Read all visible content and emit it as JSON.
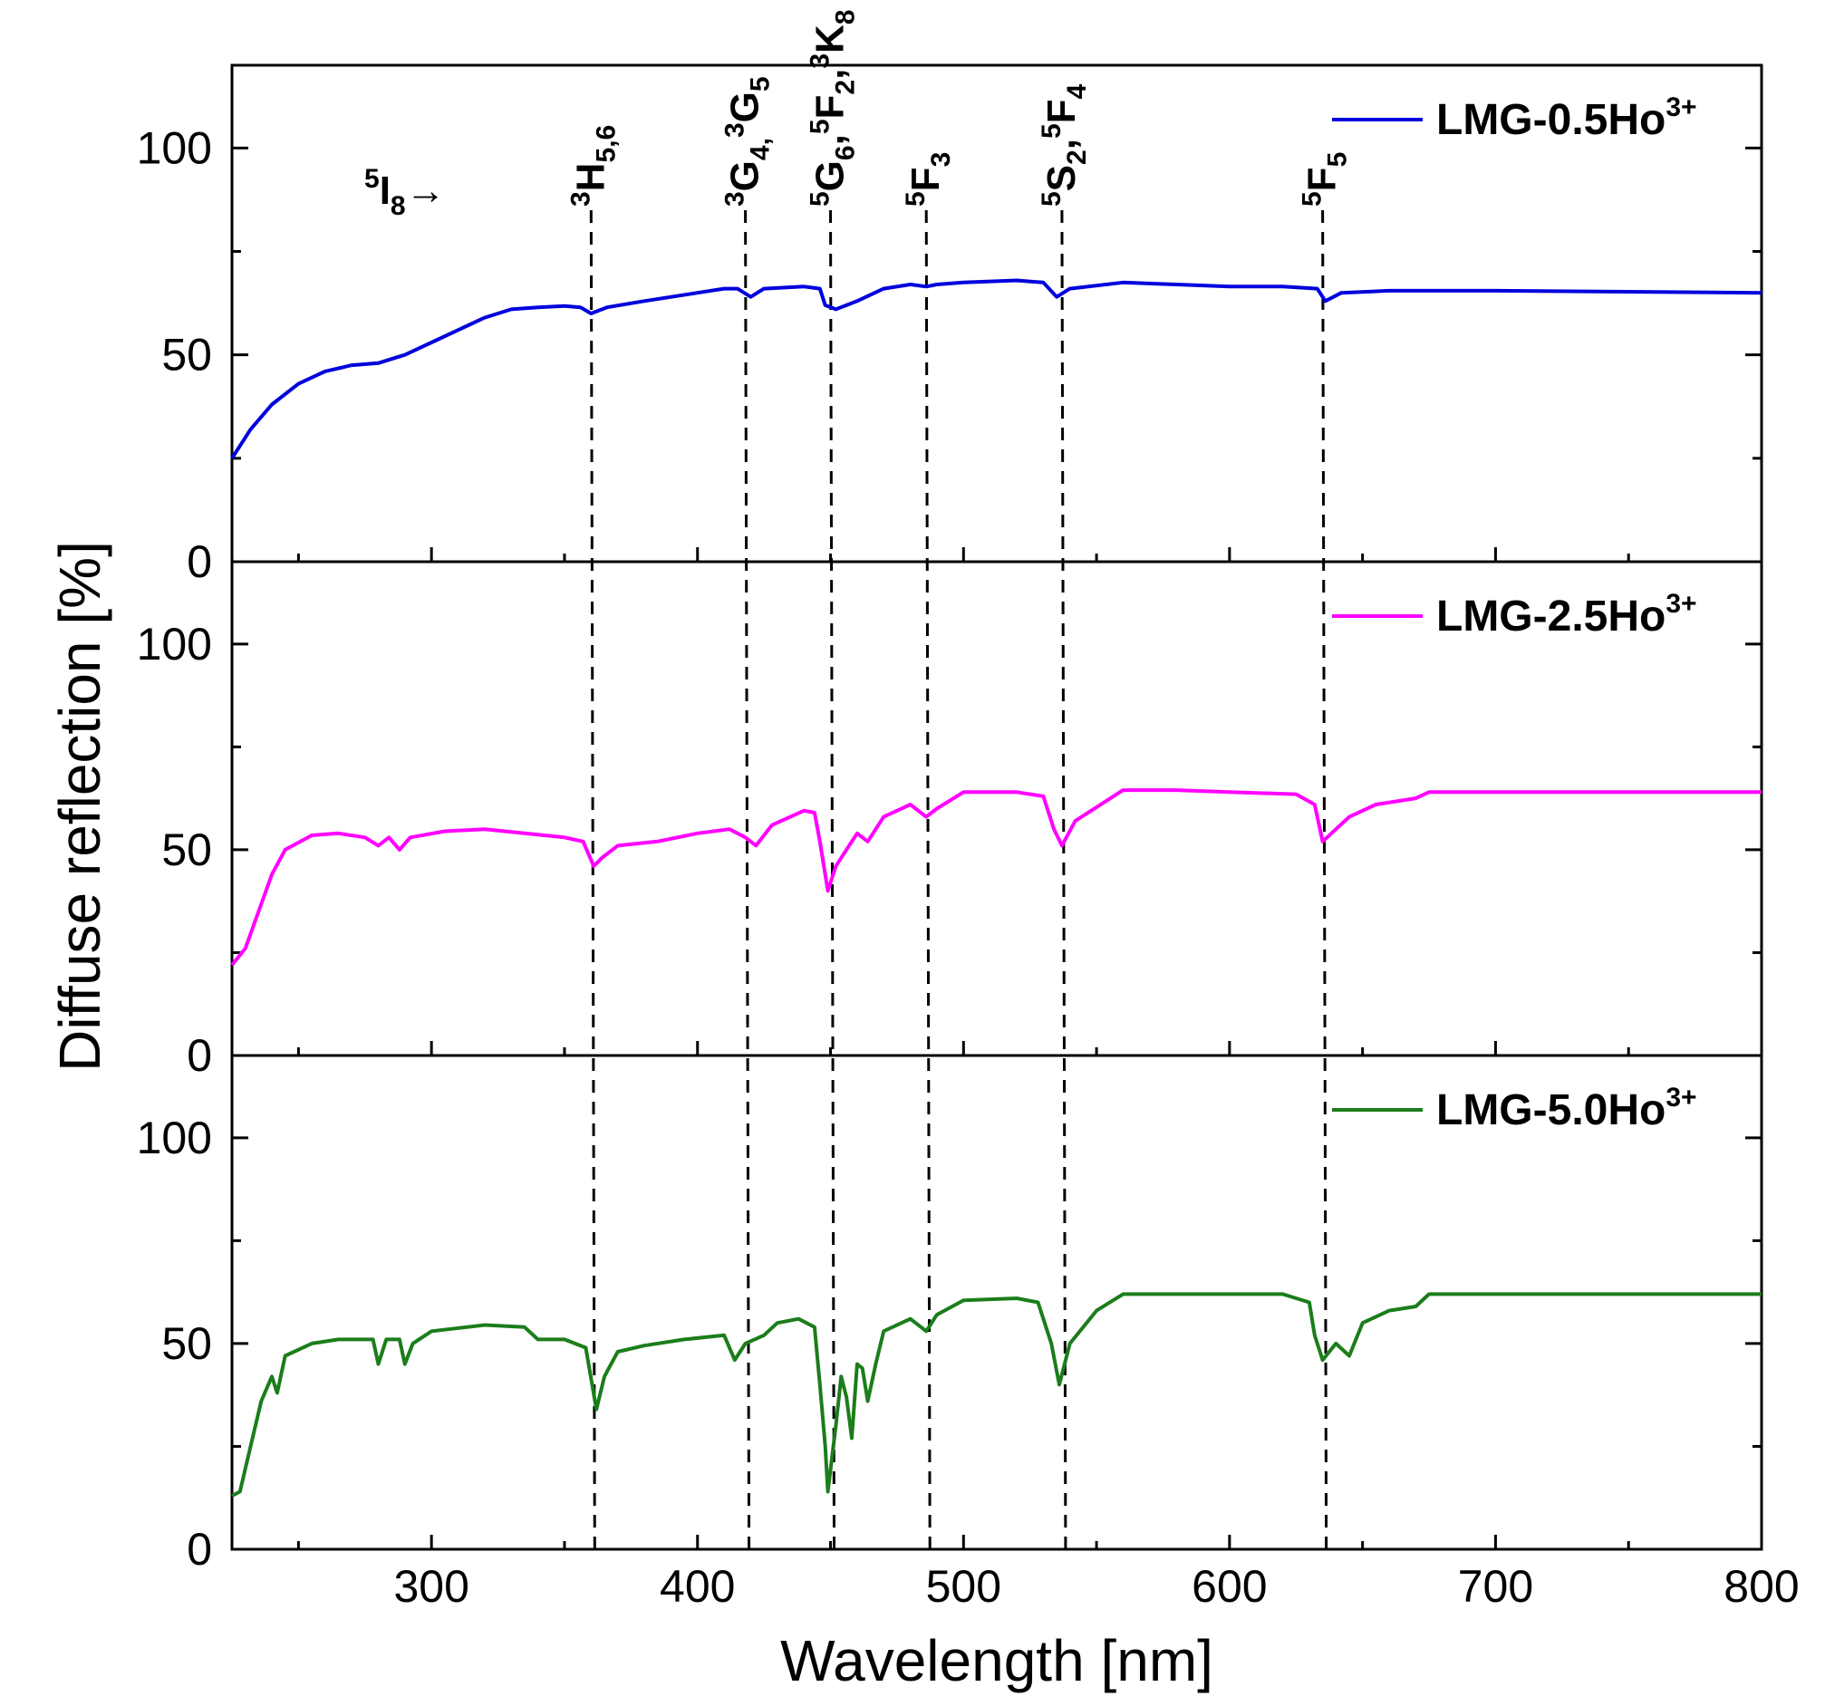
{
  "chart_data": {
    "type": "line",
    "title": "",
    "xlabel": "Wavelength [nm]",
    "ylabel": "Diffuse reflection [%]",
    "xlim": [
      225,
      800
    ],
    "ylim": [
      0,
      120
    ],
    "x_ticks": [
      300,
      400,
      500,
      600,
      700,
      800
    ],
    "x_tick_labels": [
      "300",
      "400",
      "500",
      "600",
      "700",
      "800"
    ],
    "y_ticks": [
      0,
      50,
      100
    ],
    "y_tick_labels": [
      "0",
      "50",
      "100"
    ],
    "panels": [
      {
        "legend": {
          "text": "LMG-0.5Ho",
          "superscript": "3+"
        },
        "color": "#0000dd",
        "series": {
          "name": "LMG-0.5Ho3+",
          "points": [
            [
              225,
              25
            ],
            [
              232,
              32
            ],
            [
              240,
              38
            ],
            [
              250,
              43
            ],
            [
              260,
              46
            ],
            [
              270,
              47.5
            ],
            [
              280,
              48
            ],
            [
              285,
              49
            ],
            [
              290,
              50
            ],
            [
              300,
              53
            ],
            [
              310,
              56
            ],
            [
              320,
              59
            ],
            [
              330,
              61
            ],
            [
              340,
              61.5
            ],
            [
              350,
              61.8
            ],
            [
              356,
              61.5
            ],
            [
              360,
              60
            ],
            [
              366,
              61.5
            ],
            [
              380,
              63
            ],
            [
              400,
              65
            ],
            [
              410,
              66
            ],
            [
              415,
              66
            ],
            [
              420,
              64
            ],
            [
              425,
              66
            ],
            [
              440,
              66.5
            ],
            [
              446,
              66
            ],
            [
              448,
              62
            ],
            [
              452,
              61
            ],
            [
              456,
              62
            ],
            [
              460,
              63
            ],
            [
              470,
              66
            ],
            [
              480,
              67
            ],
            [
              486,
              66.5
            ],
            [
              490,
              67
            ],
            [
              500,
              67.5
            ],
            [
              520,
              68
            ],
            [
              530,
              67.5
            ],
            [
              535,
              64
            ],
            [
              540,
              66
            ],
            [
              560,
              67.5
            ],
            [
              580,
              67
            ],
            [
              600,
              66.5
            ],
            [
              620,
              66.5
            ],
            [
              633,
              66
            ],
            [
              636,
              63
            ],
            [
              642,
              65
            ],
            [
              660,
              65.5
            ],
            [
              700,
              65.5
            ],
            [
              800,
              65
            ]
          ]
        }
      },
      {
        "legend": {
          "text": "LMG-2.5Ho",
          "superscript": "3+"
        },
        "color": "#ff00ff",
        "series": {
          "name": "LMG-2.5Ho3+",
          "points": [
            [
              225,
              22
            ],
            [
              230,
              26
            ],
            [
              235,
              35
            ],
            [
              240,
              44
            ],
            [
              245,
              50
            ],
            [
              255,
              53.5
            ],
            [
              265,
              54
            ],
            [
              275,
              53
            ],
            [
              280,
              51
            ],
            [
              284,
              53
            ],
            [
              288,
              50
            ],
            [
              292,
              53
            ],
            [
              305,
              54.5
            ],
            [
              320,
              55
            ],
            [
              335,
              54
            ],
            [
              350,
              53
            ],
            [
              357,
              52
            ],
            [
              361,
              46
            ],
            [
              364,
              48
            ],
            [
              370,
              51
            ],
            [
              385,
              52
            ],
            [
              400,
              54
            ],
            [
              412,
              55
            ],
            [
              418,
              53
            ],
            [
              422,
              51
            ],
            [
              428,
              56
            ],
            [
              440,
              59.5
            ],
            [
              444,
              59
            ],
            [
              446,
              52
            ],
            [
              449,
              40
            ],
            [
              452,
              46
            ],
            [
              456,
              50
            ],
            [
              460,
              54
            ],
            [
              464,
              52
            ],
            [
              470,
              58
            ],
            [
              480,
              61
            ],
            [
              486,
              58
            ],
            [
              490,
              60
            ],
            [
              500,
              64
            ],
            [
              520,
              64
            ],
            [
              530,
              63
            ],
            [
              534,
              55
            ],
            [
              537,
              51
            ],
            [
              542,
              57
            ],
            [
              560,
              64.5
            ],
            [
              580,
              64.5
            ],
            [
              600,
              64
            ],
            [
              625,
              63.5
            ],
            [
              632,
              61
            ],
            [
              635,
              52
            ],
            [
              640,
              55
            ],
            [
              645,
              58
            ],
            [
              655,
              61
            ],
            [
              670,
              62.5
            ],
            [
              675,
              64
            ],
            [
              700,
              64
            ],
            [
              800,
              64
            ]
          ]
        }
      },
      {
        "legend": {
          "text": "LMG-5.0Ho",
          "superscript": "3+"
        },
        "color": "#1b7d1b",
        "series": {
          "name": "LMG-5.0Ho3+",
          "points": [
            [
              225,
              13
            ],
            [
              228,
              14
            ],
            [
              232,
              25
            ],
            [
              236,
              36
            ],
            [
              240,
              42
            ],
            [
              242,
              38
            ],
            [
              245,
              47
            ],
            [
              255,
              50
            ],
            [
              265,
              51
            ],
            [
              278,
              51
            ],
            [
              280,
              45
            ],
            [
              283,
              51
            ],
            [
              288,
              51
            ],
            [
              290,
              45
            ],
            [
              293,
              50
            ],
            [
              300,
              53
            ],
            [
              320,
              54.5
            ],
            [
              335,
              54
            ],
            [
              340,
              51
            ],
            [
              350,
              51
            ],
            [
              358,
              49
            ],
            [
              362,
              34
            ],
            [
              365,
              42
            ],
            [
              370,
              48
            ],
            [
              380,
              49.5
            ],
            [
              395,
              51
            ],
            [
              410,
              52
            ],
            [
              414,
              46
            ],
            [
              418,
              50
            ],
            [
              425,
              52
            ],
            [
              430,
              55
            ],
            [
              438,
              56
            ],
            [
              444,
              54
            ],
            [
              446,
              40
            ],
            [
              448,
              25
            ],
            [
              449,
              14
            ],
            [
              452,
              30
            ],
            [
              454,
              42
            ],
            [
              456,
              37
            ],
            [
              458,
              27
            ],
            [
              460,
              45
            ],
            [
              462,
              44
            ],
            [
              464,
              36
            ],
            [
              467,
              45
            ],
            [
              470,
              53
            ],
            [
              480,
              56
            ],
            [
              486,
              53
            ],
            [
              490,
              57
            ],
            [
              500,
              60.5
            ],
            [
              520,
              61
            ],
            [
              528,
              60
            ],
            [
              533,
              50
            ],
            [
              536,
              40
            ],
            [
              540,
              50
            ],
            [
              545,
              54
            ],
            [
              550,
              58
            ],
            [
              560,
              62
            ],
            [
              580,
              62
            ],
            [
              620,
              62
            ],
            [
              630,
              60
            ],
            [
              632,
              52
            ],
            [
              635,
              46
            ],
            [
              640,
              50
            ],
            [
              645,
              47
            ],
            [
              650,
              55
            ],
            [
              660,
              58
            ],
            [
              670,
              59
            ],
            [
              675,
              62
            ],
            [
              700,
              62
            ],
            [
              800,
              62
            ]
          ]
        }
      }
    ],
    "transitions": {
      "ground": {
        "main": "I",
        "sup": "5",
        "sub": "8",
        "arrow": "→"
      },
      "lines": [
        {
          "x": 360,
          "label_parts": [
            {
              "t": "3",
              "s": "sup"
            },
            {
              "t": "H",
              "s": "main"
            },
            {
              "t": "5,6",
              "s": "sub"
            }
          ]
        },
        {
          "x": 418,
          "label_parts": [
            {
              "t": "3",
              "s": "sup"
            },
            {
              "t": "G",
              "s": "main"
            },
            {
              "t": "4,",
              "s": "sub"
            },
            {
              "t": "3",
              "s": "sup"
            },
            {
              "t": "G",
              "s": "main"
            },
            {
              "t": "5",
              "s": "sub"
            }
          ]
        },
        {
          "x": 450,
          "label_parts": [
            {
              "t": "5",
              "s": "sup"
            },
            {
              "t": "G",
              "s": "main"
            },
            {
              "t": "6",
              "s": "sub"
            },
            {
              "t": ",",
              "s": "main"
            },
            {
              "t": "5",
              "s": "sup"
            },
            {
              "t": "F",
              "s": "main"
            },
            {
              "t": "2",
              "s": "sub"
            },
            {
              "t": ",",
              "s": "main"
            },
            {
              "t": "3",
              "s": "sup"
            },
            {
              "t": "K",
              "s": "main"
            },
            {
              "t": "8",
              "s": "sub"
            }
          ]
        },
        {
          "x": 486,
          "label_parts": [
            {
              "t": "5",
              "s": "sup"
            },
            {
              "t": "F",
              "s": "main"
            },
            {
              "t": "3",
              "s": "sub"
            }
          ]
        },
        {
          "x": 537,
          "label_parts": [
            {
              "t": "5",
              "s": "sup"
            },
            {
              "t": "S",
              "s": "main"
            },
            {
              "t": "2",
              "s": "sub"
            },
            {
              "t": ",",
              "s": "main"
            },
            {
              "t": "5",
              "s": "sup"
            },
            {
              "t": "F",
              "s": "main"
            },
            {
              "t": "4",
              "s": "sub"
            }
          ]
        },
        {
          "x": 635,
          "label_parts": [
            {
              "t": "5",
              "s": "sup"
            },
            {
              "t": "F",
              "s": "main"
            },
            {
              "t": "5",
              "s": "sub"
            }
          ]
        }
      ]
    }
  }
}
